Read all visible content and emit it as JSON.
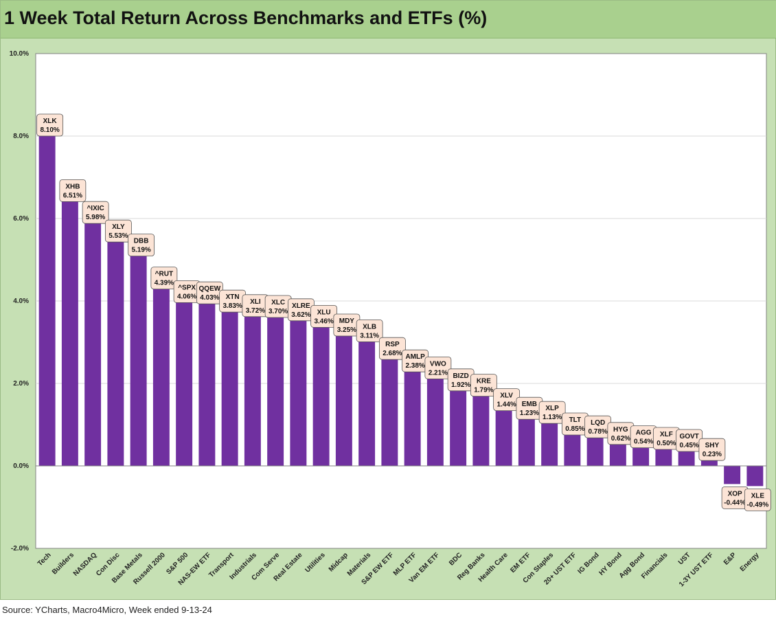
{
  "chart_data": {
    "type": "bar",
    "title": "1 Week Total Return Across Benchmarks and ETFs (%)",
    "ylim": [
      -2,
      10
    ],
    "yticks": [
      "-2.0%",
      "0.0%",
      "2.0%",
      "4.0%",
      "6.0%",
      "8.0%",
      "10.0%"
    ],
    "ytick_values": [
      -2,
      0,
      2,
      4,
      6,
      8,
      10
    ],
    "grid": true,
    "categories": [
      "Tech",
      "Builders",
      "NASDAQ",
      "Con Disc",
      "Base Metals",
      "Russell 2000",
      "S&P 500",
      "NAS-EW ETF",
      "Transport",
      "Industrials",
      "Com Serve",
      "Real Estate",
      "Utilities",
      "Midcap",
      "Materials",
      "S&P EW ETF",
      "MLP ETF",
      "Van EM ETF",
      "BDC",
      "Reg Banks",
      "Health Care",
      "EM ETF",
      "Con Staples",
      "20+ UST ETF",
      "IG Bond",
      "HY Bond",
      "Agg Bond",
      "Financials",
      "UST",
      "1-3Y UST ETF",
      "E&P",
      "Energy"
    ],
    "tickers": [
      "XLK",
      "XHB",
      "^IXIC",
      "XLY",
      "DBB",
      "^RUT",
      "^SPX",
      "QQEW",
      "XTN",
      "XLI",
      "XLC",
      "XLRE",
      "XLU",
      "MDY",
      "XLB",
      "RSP",
      "AMLP",
      "VWO",
      "BIZD",
      "KRE",
      "XLV",
      "EMB",
      "XLP",
      "TLT",
      "LQD",
      "HYG",
      "AGG",
      "XLF",
      "GOVT",
      "SHY",
      "XOP",
      "XLE"
    ],
    "values": [
      8.1,
      6.51,
      5.98,
      5.53,
      5.19,
      4.39,
      4.06,
      4.03,
      3.83,
      3.72,
      3.7,
      3.62,
      3.46,
      3.25,
      3.11,
      2.68,
      2.38,
      2.21,
      1.92,
      1.79,
      1.44,
      1.23,
      1.13,
      0.85,
      0.78,
      0.62,
      0.54,
      0.5,
      0.45,
      0.23,
      -0.44,
      -0.49
    ],
    "value_labels": [
      "8.10%",
      "6.51%",
      "5.98%",
      "5.53%",
      "5.19%",
      "4.39%",
      "4.06%",
      "4.03%",
      "3.83%",
      "3.72%",
      "3.70%",
      "3.62%",
      "3.46%",
      "3.25%",
      "3.11%",
      "2.68%",
      "2.38%",
      "2.21%",
      "1.92%",
      "1.79%",
      "1.44%",
      "1.23%",
      "1.13%",
      "0.85%",
      "0.78%",
      "0.62%",
      "0.54%",
      "0.50%",
      "0.45%",
      "0.23%",
      "-0.44%",
      "-0.49%"
    ],
    "bar_color": "#7030a0",
    "label_fill": "#fce4d6"
  },
  "footer": {
    "source": "Source: YCharts, Macro4Micro, Week ended 9-13-24"
  }
}
